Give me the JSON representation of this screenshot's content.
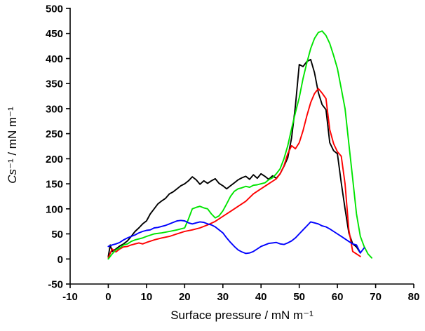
{
  "labels": {
    "xlabel": "Surface pressure / mN m⁻¹",
    "ylabel_var": "Cs",
    "ylabel_rest": "⁻¹ / mN m⁻¹"
  },
  "chart_data": {
    "type": "line",
    "title": "",
    "xlabel": "Surface pressure / mN m⁻¹",
    "ylabel": "Cs⁻¹ / mN m⁻¹",
    "xlim": [
      -10,
      80
    ],
    "ylim": [
      -50,
      500
    ],
    "xticks": [
      -10,
      0,
      10,
      20,
      30,
      40,
      50,
      60,
      70,
      80
    ],
    "yticks": [
      -50,
      0,
      50,
      100,
      150,
      200,
      250,
      300,
      350,
      400,
      450,
      500
    ],
    "grid": false,
    "legend": null,
    "background": "#ffffff",
    "series": [
      {
        "name": "black-curve",
        "color": "#000000",
        "points": [
          [
            0,
            5
          ],
          [
            0.5,
            28
          ],
          [
            1,
            15
          ],
          [
            2,
            20
          ],
          [
            3,
            26
          ],
          [
            4,
            30
          ],
          [
            5,
            36
          ],
          [
            6,
            45
          ],
          [
            7,
            55
          ],
          [
            8,
            62
          ],
          [
            9,
            70
          ],
          [
            10,
            76
          ],
          [
            11,
            90
          ],
          [
            12,
            100
          ],
          [
            13,
            110
          ],
          [
            14,
            116
          ],
          [
            15,
            121
          ],
          [
            16,
            130
          ],
          [
            17,
            134
          ],
          [
            18,
            140
          ],
          [
            19,
            146
          ],
          [
            20,
            150
          ],
          [
            21,
            156
          ],
          [
            22,
            164
          ],
          [
            23,
            158
          ],
          [
            24,
            149
          ],
          [
            25,
            156
          ],
          [
            26,
            151
          ],
          [
            27,
            156
          ],
          [
            28,
            160
          ],
          [
            29,
            151
          ],
          [
            30,
            146
          ],
          [
            31,
            140
          ],
          [
            32,
            146
          ],
          [
            33,
            152
          ],
          [
            34,
            158
          ],
          [
            35,
            162
          ],
          [
            36,
            165
          ],
          [
            37,
            159
          ],
          [
            38,
            168
          ],
          [
            39,
            161
          ],
          [
            40,
            170
          ],
          [
            41,
            165
          ],
          [
            42,
            159
          ],
          [
            43,
            166
          ],
          [
            44,
            161
          ],
          [
            45,
            170
          ],
          [
            46,
            185
          ],
          [
            47,
            202
          ],
          [
            48,
            242
          ],
          [
            49,
            305
          ],
          [
            50,
            388
          ],
          [
            51,
            384
          ],
          [
            52,
            394
          ],
          [
            53,
            398
          ],
          [
            54,
            372
          ],
          [
            55,
            332
          ],
          [
            56,
            308
          ],
          [
            57,
            298
          ],
          [
            58,
            232
          ],
          [
            59,
            216
          ],
          [
            60,
            210
          ],
          [
            61,
            152
          ],
          [
            62,
            100
          ],
          [
            63,
            52
          ],
          [
            64,
            30
          ],
          [
            65,
            24
          ],
          [
            66,
            12
          ]
        ]
      },
      {
        "name": "red-curve",
        "color": "#fe0000",
        "points": [
          [
            0,
            2
          ],
          [
            1,
            20
          ],
          [
            2,
            14
          ],
          [
            3,
            20
          ],
          [
            4,
            24
          ],
          [
            5,
            25
          ],
          [
            6,
            28
          ],
          [
            7,
            30
          ],
          [
            8,
            32
          ],
          [
            9,
            30
          ],
          [
            10,
            33
          ],
          [
            12,
            38
          ],
          [
            14,
            42
          ],
          [
            16,
            45
          ],
          [
            18,
            50
          ],
          [
            20,
            55
          ],
          [
            22,
            58
          ],
          [
            24,
            62
          ],
          [
            26,
            68
          ],
          [
            28,
            75
          ],
          [
            30,
            85
          ],
          [
            32,
            95
          ],
          [
            34,
            105
          ],
          [
            36,
            115
          ],
          [
            38,
            130
          ],
          [
            40,
            140
          ],
          [
            42,
            150
          ],
          [
            43,
            155
          ],
          [
            44,
            160
          ],
          [
            45,
            170
          ],
          [
            46,
            186
          ],
          [
            47,
            210
          ],
          [
            48,
            226
          ],
          [
            49,
            220
          ],
          [
            50,
            232
          ],
          [
            51,
            256
          ],
          [
            52,
            286
          ],
          [
            53,
            312
          ],
          [
            54,
            330
          ],
          [
            55,
            340
          ],
          [
            56,
            331
          ],
          [
            57,
            320
          ],
          [
            58,
            258
          ],
          [
            59,
            230
          ],
          [
            60,
            214
          ],
          [
            61,
            205
          ],
          [
            62,
            150
          ],
          [
            63,
            58
          ],
          [
            64,
            15
          ],
          [
            65,
            10
          ],
          [
            66,
            5
          ]
        ]
      },
      {
        "name": "green-curve",
        "color": "#00e400",
        "points": [
          [
            0,
            0
          ],
          [
            1,
            10
          ],
          [
            2,
            18
          ],
          [
            3,
            22
          ],
          [
            4,
            28
          ],
          [
            5,
            30
          ],
          [
            6,
            35
          ],
          [
            7,
            38
          ],
          [
            8,
            40
          ],
          [
            9,
            42
          ],
          [
            10,
            45
          ],
          [
            12,
            50
          ],
          [
            14,
            52
          ],
          [
            16,
            55
          ],
          [
            18,
            58
          ],
          [
            20,
            62
          ],
          [
            21,
            80
          ],
          [
            22,
            100
          ],
          [
            23,
            103
          ],
          [
            24,
            105
          ],
          [
            25,
            102
          ],
          [
            26,
            100
          ],
          [
            27,
            90
          ],
          [
            28,
            82
          ],
          [
            29,
            86
          ],
          [
            30,
            96
          ],
          [
            31,
            110
          ],
          [
            32,
            125
          ],
          [
            33,
            135
          ],
          [
            34,
            140
          ],
          [
            35,
            142
          ],
          [
            36,
            145
          ],
          [
            37,
            143
          ],
          [
            38,
            147
          ],
          [
            39,
            148
          ],
          [
            40,
            150
          ],
          [
            41,
            152
          ],
          [
            42,
            158
          ],
          [
            43,
            162
          ],
          [
            44,
            170
          ],
          [
            45,
            180
          ],
          [
            46,
            200
          ],
          [
            47,
            226
          ],
          [
            48,
            260
          ],
          [
            49,
            292
          ],
          [
            50,
            322
          ],
          [
            51,
            360
          ],
          [
            52,
            392
          ],
          [
            53,
            420
          ],
          [
            54,
            440
          ],
          [
            55,
            452
          ],
          [
            56,
            455
          ],
          [
            57,
            446
          ],
          [
            58,
            430
          ],
          [
            59,
            406
          ],
          [
            60,
            380
          ],
          [
            61,
            340
          ],
          [
            62,
            300
          ],
          [
            63,
            230
          ],
          [
            64,
            160
          ],
          [
            65,
            90
          ],
          [
            66,
            45
          ],
          [
            67,
            25
          ],
          [
            68,
            10
          ],
          [
            69,
            2
          ]
        ]
      },
      {
        "name": "blue-curve",
        "color": "#0000fe",
        "points": [
          [
            0,
            25
          ],
          [
            1,
            28
          ],
          [
            2,
            30
          ],
          [
            3,
            33
          ],
          [
            4,
            38
          ],
          [
            5,
            42
          ],
          [
            6,
            45
          ],
          [
            7,
            48
          ],
          [
            8,
            52
          ],
          [
            9,
            55
          ],
          [
            10,
            57
          ],
          [
            11,
            58
          ],
          [
            12,
            62
          ],
          [
            13,
            63
          ],
          [
            14,
            65
          ],
          [
            15,
            67
          ],
          [
            16,
            70
          ],
          [
            17,
            73
          ],
          [
            18,
            76
          ],
          [
            19,
            77
          ],
          [
            20,
            76
          ],
          [
            21,
            72
          ],
          [
            22,
            70
          ],
          [
            23,
            72
          ],
          [
            24,
            74
          ],
          [
            25,
            73
          ],
          [
            26,
            70
          ],
          [
            27,
            68
          ],
          [
            28,
            64
          ],
          [
            29,
            58
          ],
          [
            30,
            52
          ],
          [
            31,
            42
          ],
          [
            32,
            33
          ],
          [
            33,
            25
          ],
          [
            34,
            18
          ],
          [
            35,
            14
          ],
          [
            36,
            11
          ],
          [
            37,
            12
          ],
          [
            38,
            15
          ],
          [
            39,
            20
          ],
          [
            40,
            25
          ],
          [
            41,
            28
          ],
          [
            42,
            31
          ],
          [
            43,
            32
          ],
          [
            44,
            33
          ],
          [
            45,
            30
          ],
          [
            46,
            29
          ],
          [
            47,
            32
          ],
          [
            48,
            36
          ],
          [
            49,
            42
          ],
          [
            50,
            50
          ],
          [
            51,
            58
          ],
          [
            52,
            66
          ],
          [
            53,
            74
          ],
          [
            54,
            72
          ],
          [
            55,
            70
          ],
          [
            56,
            66
          ],
          [
            57,
            64
          ],
          [
            58,
            60
          ],
          [
            59,
            55
          ],
          [
            60,
            50
          ],
          [
            61,
            45
          ],
          [
            62,
            40
          ],
          [
            63,
            35
          ],
          [
            64,
            30
          ],
          [
            65,
            28
          ],
          [
            66,
            12
          ],
          [
            67,
            22
          ]
        ]
      }
    ]
  }
}
